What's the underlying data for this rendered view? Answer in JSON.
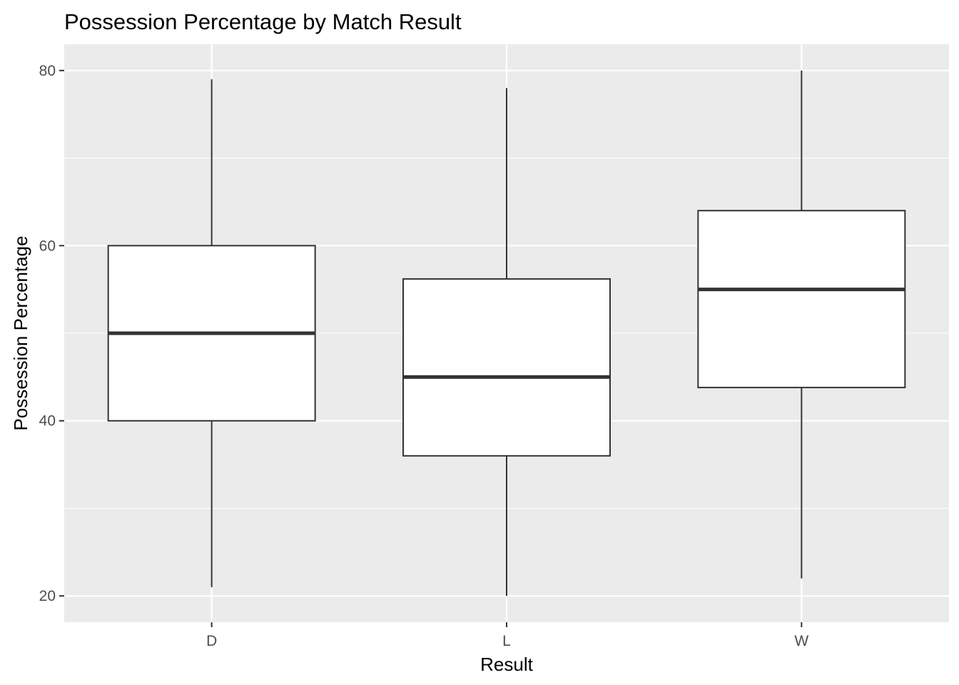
{
  "chart_data": {
    "type": "boxplot",
    "title": "Possession Percentage by Match Result",
    "xlabel": "Result",
    "ylabel": "Possession Percentage",
    "categories": [
      "D",
      "L",
      "W"
    ],
    "boxes": [
      {
        "category": "D",
        "min": 21,
        "q1": 40,
        "median": 50,
        "q3": 60,
        "max": 79
      },
      {
        "category": "L",
        "min": 20,
        "q1": 36,
        "median": 45,
        "q3": 56.2,
        "max": 78
      },
      {
        "category": "W",
        "min": 22,
        "q1": 43.8,
        "median": 55,
        "q3": 64,
        "max": 80
      }
    ],
    "ylim": [
      17,
      83
    ],
    "y_ticks": [
      20,
      40,
      60,
      80
    ],
    "y_minor_ticks": [
      30,
      50,
      70
    ],
    "grid": true,
    "colors": {
      "panel_background": "#EBEBEB",
      "grid_line": "#FFFFFF",
      "box_fill": "#FFFFFF",
      "box_stroke": "#333333",
      "tick_label": "#4D4D4D",
      "tick_mark": "#333333"
    }
  }
}
